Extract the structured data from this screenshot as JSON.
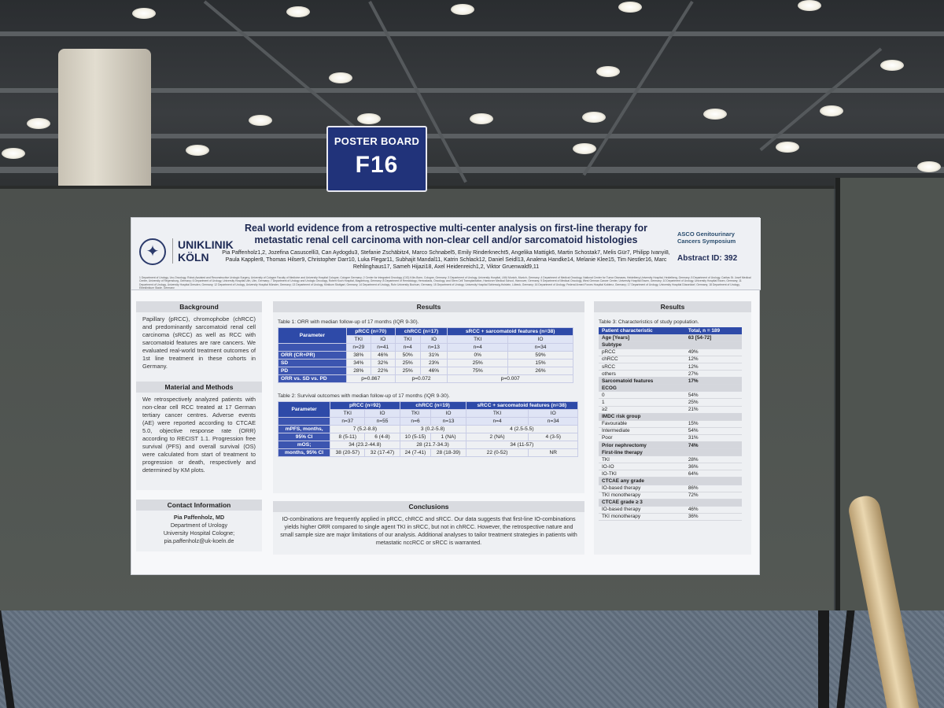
{
  "sign": {
    "label": "POSTER BOARD",
    "code": "F16"
  },
  "poster": {
    "logo": {
      "line1": "UNIKLINIK",
      "line2": "KÖLN"
    },
    "title": "Real world evidence from a retrospective multi-center analysis on first-line therapy for metastatic renal cell carcinoma with non-clear cell and/or sarcomatoid histologies",
    "authors": "Pia Paffenholz1,2, Jozefina Casuscelli3, Can Aydogdu3, Stefanie Zschäbitz4, Marco Schnabel5, Emily Rinderknecht5, Angelika Mattigk6, Martin Schostak7, Melis Gür7, Philipp Ivanyi8, Paula Kappler8, Thomas Hilser9, Christopher Darr10, Luka Flegar11, Subhajit Mandal11, Katrin Schlack12, Daniel Seidl13, Analena Handke14, Melanie Klee15, Tim Nestler16, Marc Rehlinghaus17, Sameh Hijazi18, Axel Heidenreich1,2, Viktor Gruenwald9,11",
    "affiliations": "1 Department of Urology, Uro-Oncology, Robot-Assisted and Reconstructive Urologic Surgery, University of Cologne Faculty of Medicine and University Hospital Cologne, Cologne Germany; 2 Center for Integrated Oncology (CIO) Köln-Bonn, Cologne, Germany; 3 Department of Urology, University Hospital, LMU Munich, Munich, Germany; 4 Department of Medical Oncology, National Center for Tumor Diseases, Heidelberg University Hospital, Heidelberg, Germany; 5 Department of Urology, Caritas St. Josef Medical Center, University of Regensburg, Germany; 6 Department of Urology, University Hospital Ulm, Ulm, Germany; 7 Department of Urology and Urologic Oncology, Robert Koch Hospital, Magdeburg, Germany; 8 Department of Hematology, Hemostasis, Oncology, and Stem Cell Transplantation, Hannover Medical School, Hannover, Germany; 9 Department of Medical Oncology, West German Cancer Center, University Hospital Essen, Germany; 10 Department of Urology, University Hospital Essen, Germany; 11 Department of Urology, University Hospital Dresden, Germany; 12 Department of Urology, University Hospital Münster, Germany; 13 Department of Urology, Klinikum Stuttgart, Germany; 14 Department of Urology, Ruhr University Bochum, Germany; 15 Department of Urology, University Hospital Schleswig-Holstein, Lübeck, Germany; 16 Department of Urology, Federal Armed Forces Hospital Koblenz, Germany; 17 Department of Urology, University Hospital Düsseldorf, Germany; 18 Department of Urology, Elbeklinikum Stade, Germany",
    "asco": {
      "line1": "ASCO Genitourinary",
      "line2": "Cancers Symposium"
    },
    "abstract_id": "Abstract ID: 392",
    "background": {
      "title": "Background",
      "text": "Papillary (pRCC), chromophobe (chRCC) and predominantly sarcomatoid renal cell carcinoma (sRCC) as well as RCC with sarcomatoid features are rare cancers. We evaluated real-world treatment outcomes of 1st line treatment in these cohorts in Germany."
    },
    "methods": {
      "title": "Material and Methods",
      "text": "We retrospectively analyzed patients with non-clear cell RCC treated at 17 German tertiary cancer centres. Adverse events (AE) were reported according to CTCAE 5.0, objective response rate (ORR) according to RECIST 1.1. Progression free survival (PFS) and overall survival (OS) were calculated from start of treatment to progression or death, respectively and determined by KM plots."
    },
    "contact": {
      "title": "Contact Information",
      "name": "Pia Paffenholz, MD",
      "dept": "Department of Urology",
      "hospital": "University Hospital Cologne;",
      "email": "pia.paffenholz@uk-koeln.de"
    },
    "results_title": "Results",
    "table1": {
      "caption": "Table 1: ORR with median follow-up of 17 months (IQR 9-30).",
      "header": [
        "Parameter",
        "pRCC (n=70)",
        "chRCC (n=17)",
        "sRCC + sarcomatoid features (n=38)"
      ],
      "sub": [
        "TKI",
        "IO",
        "TKI",
        "IO",
        "TKI",
        "IO"
      ],
      "n": [
        "n=29",
        "n=41",
        "n=4",
        "n=13",
        "n=4",
        "n=34"
      ],
      "rows": [
        {
          "label": "ORR (CR+PR)",
          "vals": [
            "38%",
            "46%",
            "50%",
            "31%",
            "0%",
            "59%"
          ]
        },
        {
          "label": "SD",
          "vals": [
            "34%",
            "32%",
            "25%",
            "23%",
            "25%",
            "15%"
          ]
        },
        {
          "label": "PD",
          "vals": [
            "28%",
            "22%",
            "25%",
            "46%",
            "75%",
            "26%"
          ]
        }
      ],
      "p_label": "ORR vs. SD vs. PD",
      "p": [
        "p=0.867",
        "p=0.072",
        "p=0.007"
      ]
    },
    "table2": {
      "caption": "Table 2: Survival outcomes with median follow-up of 17 months (IQR 9-30).",
      "header": [
        "Parameter",
        "pRCC (n=92)",
        "chRCC (n=19)",
        "sRCC + sarcomatoid features (n=38)"
      ],
      "sub": [
        "TKI",
        "IO",
        "TKI",
        "IO",
        "TKI",
        "IO"
      ],
      "n": [
        "n=37",
        "n=55",
        "n=6",
        "n=13",
        "n=4",
        "n=34"
      ],
      "pfs_label1": "mPFS, months,",
      "pfs_label2": "95% CI",
      "pfs_all": [
        "7 (5.2-8.8)",
        "3 (0.2-5.8)",
        "4 (2.5-5.5)"
      ],
      "pfs": [
        "8 (5-11)",
        "6 (4-8)",
        "10 (5-15)",
        "1 (NA)",
        "2 (NA)",
        "4 (3-5)"
      ],
      "os_label1": "mOS;",
      "os_label2": "months, 95% CI",
      "os_all": [
        "34 (23.2-44.8)",
        "28 (21.7-34.3)",
        "34 (11-57)"
      ],
      "os": [
        "38 (20-57)",
        "32 (17-47)",
        "24 (7-41)",
        "28 (18-39)",
        "22 (0-52)",
        "NR"
      ]
    },
    "conclusions": {
      "title": "Conclusions",
      "text": "IO-combinations are frequently applied in pRCC, chRCC and sRCC. Our data suggests that first-line IO-combinations yields higher ORR compared to single agent TKI in sRCC, but not in chRCC. However, the retrospective nature and small sample size are major limitations of our analysis. Additional analyses to tailor treatment strategies in patients with metastatic nccRCC or sRCC is warranted."
    },
    "table3": {
      "caption": "Table 3: Characteristics of study population.",
      "header": [
        "Patient characteristic",
        "Total, n = 189"
      ],
      "rows": [
        {
          "label": "Age [Years]",
          "val": "63 [54-72]",
          "group": true
        },
        {
          "label": "Subtype",
          "val": "",
          "group": true
        },
        {
          "label": "pRCC",
          "val": "49%"
        },
        {
          "label": "chRCC",
          "val": "12%"
        },
        {
          "label": "sRCC",
          "val": "12%"
        },
        {
          "label": "others",
          "val": "27%"
        },
        {
          "label": "Sarcomatoid features",
          "val": "17%",
          "group": true
        },
        {
          "label": "ECOG",
          "val": "",
          "group": true
        },
        {
          "label": "0",
          "val": "54%"
        },
        {
          "label": "1",
          "val": "25%"
        },
        {
          "label": "≥2",
          "val": "21%"
        },
        {
          "label": "IMDC risk group",
          "val": "",
          "group": true
        },
        {
          "label": "Favourable",
          "val": "15%"
        },
        {
          "label": "Intermediate",
          "val": "54%"
        },
        {
          "label": "Poor",
          "val": "31%"
        },
        {
          "label": "Prior nephrectomy",
          "val": "74%",
          "group": true
        },
        {
          "label": "First-line therapy",
          "val": "",
          "group": true
        },
        {
          "label": "TKI",
          "val": "28%"
        },
        {
          "label": "IO-IO",
          "val": "36%"
        },
        {
          "label": "IO-TKI",
          "val": "64%"
        },
        {
          "label": "CTCAE any grade",
          "val": "",
          "group": true
        },
        {
          "label": "IO-based therapy",
          "val": "86%"
        },
        {
          "label": "TKI monotherapy",
          "val": "72%"
        },
        {
          "label": "CTCAE grade ≥ 3",
          "val": "",
          "group": true
        },
        {
          "label": "IO-based therapy",
          "val": "46%"
        },
        {
          "label": "TKI monotherapy",
          "val": "36%"
        }
      ]
    }
  }
}
